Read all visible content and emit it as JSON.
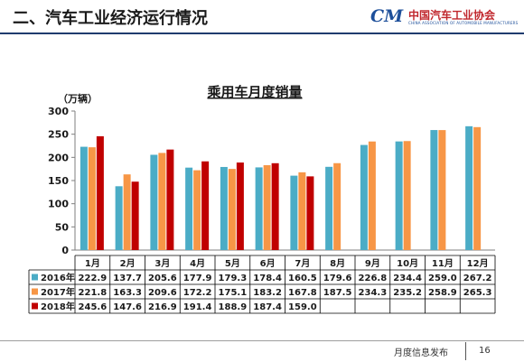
{
  "slide": {
    "title": "二、汽车工业经济运行情况",
    "logo_cn": "中国汽车工业协会",
    "logo_en": "CHINA ASSOCIATION OF AUTOMOBILE MANUFACTURERS",
    "logo_mark": "CM",
    "footer_text": "月度信息发布",
    "page_number": "16"
  },
  "colors": {
    "title_rule": "#1f3b6e",
    "series_2016": "#4bacc6",
    "series_2017": "#f79646",
    "series_2018": "#c00000"
  },
  "chart_data": {
    "type": "bar",
    "title": "乘用车月度销量",
    "ylabel": "（万辆）",
    "ylim": [
      0,
      300
    ],
    "yticks": [
      0,
      50,
      100,
      150,
      200,
      250,
      300
    ],
    "grid": false,
    "legend": "table-left",
    "categories": [
      "1月",
      "2月",
      "3月",
      "4月",
      "5月",
      "6月",
      "7月",
      "8月",
      "9月",
      "10月",
      "11月",
      "12月"
    ],
    "series": [
      {
        "name": "2016年",
        "color": "#4bacc6",
        "values": [
          222.9,
          137.7,
          205.6,
          177.9,
          179.3,
          178.4,
          160.5,
          179.6,
          226.8,
          234.4,
          259.0,
          267.2
        ],
        "labels": [
          "222.9",
          "137.7",
          "205.6",
          "177.9",
          "179.3",
          "178.4",
          "160.5",
          "179.6",
          "226.8",
          "234.4",
          "259.0",
          "267.2"
        ]
      },
      {
        "name": "2017年",
        "color": "#f79646",
        "values": [
          221.8,
          163.3,
          209.6,
          172.2,
          175.1,
          183.2,
          167.8,
          187.5,
          234.3,
          235.2,
          258.9,
          265.3
        ],
        "labels": [
          "221.8",
          "163.3",
          "209.6",
          "172.2",
          "175.1",
          "183.2",
          "167.8",
          "187.5",
          "234.3",
          "235.2",
          "258.9",
          "265.3"
        ]
      },
      {
        "name": "2018年",
        "color": "#c00000",
        "values": [
          245.6,
          147.6,
          216.9,
          191.4,
          188.9,
          187.4,
          159.0,
          null,
          null,
          null,
          null,
          null
        ],
        "labels": [
          "245.6",
          "147.6",
          "216.9",
          "191.4",
          "188.9",
          "187.4",
          "159.0",
          "",
          "",
          "",
          "",
          ""
        ]
      }
    ]
  }
}
